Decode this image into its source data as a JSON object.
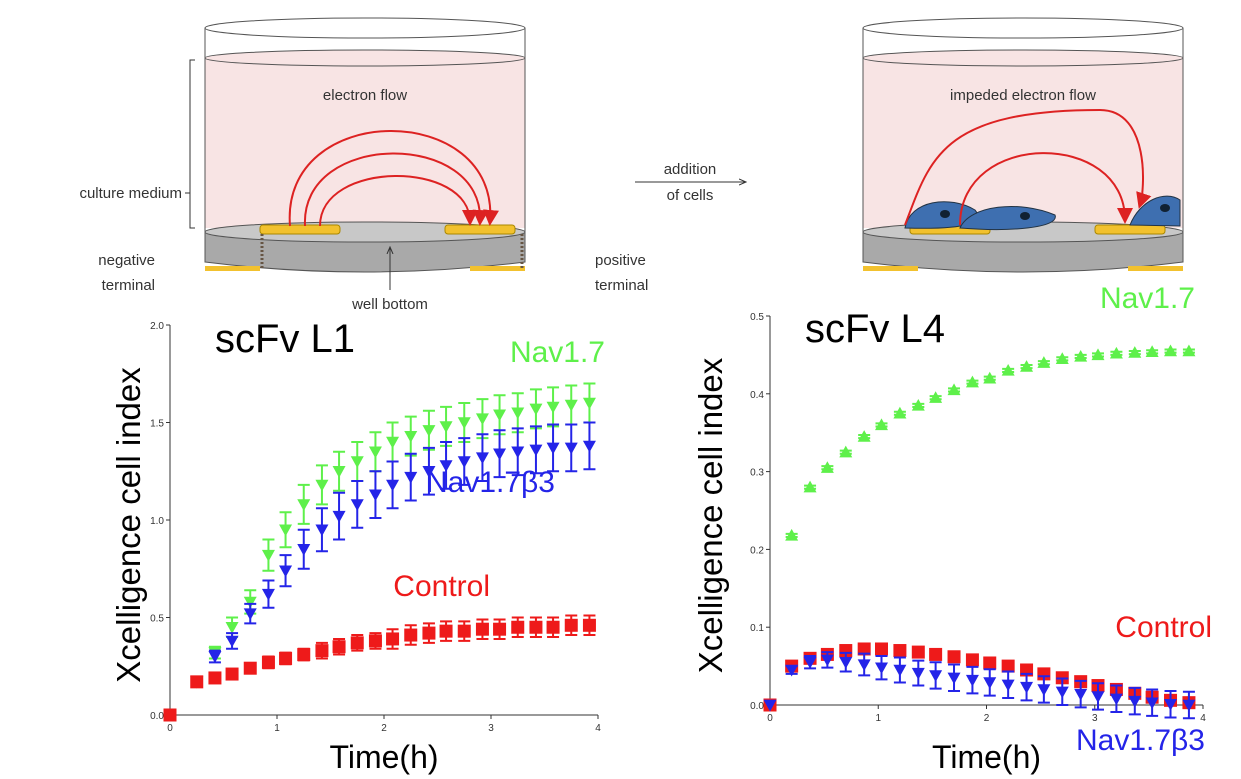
{
  "diagram": {
    "culture_medium": "culture medium",
    "electron_flow": "electron flow",
    "negative_terminal": [
      "negative",
      "terminal"
    ],
    "well_bottom": "well bottom",
    "positive_terminal": [
      "positive",
      "terminal"
    ],
    "addition": [
      "addition",
      "of cells"
    ],
    "impeded_flow": "impeded electron flow"
  },
  "chart_data": [
    {
      "type": "scatter",
      "title": "scFv L1",
      "xlabel": "Time(h)",
      "ylabel": "Xcelligence cell index",
      "xlim": [
        0,
        4
      ],
      "xticks": [
        0,
        1,
        2,
        3,
        4
      ],
      "ylim": [
        0,
        2
      ],
      "yticks": [
        {
          "value": 0,
          "label": "0.0"
        },
        0.5,
        {
          "value": 1,
          "label": "1.0"
        },
        1.5,
        {
          "value": 2,
          "label": "2.0"
        }
      ],
      "x": [
        0,
        0.25,
        0.42,
        0.58,
        0.75,
        0.92,
        1.08,
        1.25,
        1.42,
        1.58,
        1.75,
        1.92,
        2.08,
        2.25,
        2.42,
        2.58,
        2.75,
        2.92,
        3.08,
        3.25,
        3.42,
        3.58,
        3.75,
        3.92
      ],
      "series": [
        {
          "name": "Nav1.7",
          "color": "#5ef04a",
          "marker": "triangle-down",
          "values": [
            0,
            0.17,
            0.32,
            0.45,
            0.58,
            0.82,
            0.95,
            1.08,
            1.18,
            1.25,
            1.3,
            1.35,
            1.4,
            1.43,
            1.46,
            1.48,
            1.5,
            1.52,
            1.54,
            1.55,
            1.57,
            1.58,
            1.59,
            1.6
          ],
          "errors": [
            0,
            0.02,
            0.03,
            0.05,
            0.06,
            0.08,
            0.09,
            0.1,
            0.1,
            0.1,
            0.1,
            0.1,
            0.1,
            0.1,
            0.1,
            0.1,
            0.1,
            0.1,
            0.1,
            0.1,
            0.1,
            0.1,
            0.1,
            0.1
          ]
        },
        {
          "name": "Nav1.7β3",
          "color": "#2424e8",
          "marker": "triangle-down",
          "values": [
            0,
            0.17,
            0.3,
            0.38,
            0.52,
            0.62,
            0.74,
            0.85,
            0.95,
            1.02,
            1.08,
            1.13,
            1.18,
            1.22,
            1.25,
            1.28,
            1.3,
            1.32,
            1.34,
            1.35,
            1.36,
            1.37,
            1.37,
            1.38
          ],
          "errors": [
            0,
            0.02,
            0.03,
            0.04,
            0.05,
            0.07,
            0.08,
            0.1,
            0.11,
            0.12,
            0.12,
            0.12,
            0.12,
            0.12,
            0.12,
            0.12,
            0.12,
            0.12,
            0.12,
            0.12,
            0.12,
            0.12,
            0.12,
            0.12
          ]
        },
        {
          "name": "Control",
          "color": "#ee1a1a",
          "marker": "square",
          "values": [
            0,
            0.17,
            0.19,
            0.21,
            0.24,
            0.27,
            0.29,
            0.31,
            0.33,
            0.35,
            0.37,
            0.38,
            0.39,
            0.41,
            0.42,
            0.43,
            0.43,
            0.44,
            0.44,
            0.45,
            0.45,
            0.45,
            0.46,
            0.46
          ],
          "errors": [
            0,
            0.01,
            0.01,
            0.02,
            0.02,
            0.03,
            0.03,
            0.03,
            0.04,
            0.04,
            0.04,
            0.04,
            0.05,
            0.05,
            0.05,
            0.05,
            0.05,
            0.05,
            0.05,
            0.05,
            0.05,
            0.05,
            0.05,
            0.05
          ]
        }
      ]
    },
    {
      "type": "scatter",
      "title": "scFv L4",
      "xlabel": "Time(h)",
      "ylabel": "Xcelligence cell index",
      "xlim": [
        0,
        4
      ],
      "xticks": [
        0,
        1,
        2,
        3,
        4
      ],
      "ylim": [
        0,
        0.5
      ],
      "yticks": [
        {
          "value": 0,
          "label": "0.0"
        },
        0.1,
        0.2,
        0.3,
        0.4,
        0.5
      ],
      "x": [
        0,
        0.2,
        0.37,
        0.53,
        0.7,
        0.87,
        1.03,
        1.2,
        1.37,
        1.53,
        1.7,
        1.87,
        2.03,
        2.2,
        2.37,
        2.53,
        2.7,
        2.87,
        3.03,
        3.2,
        3.37,
        3.53,
        3.7,
        3.87
      ],
      "series": [
        {
          "name": "Nav1.7",
          "color": "#5ef04a",
          "marker": "triangle-up",
          "values": [
            0,
            0.218,
            0.28,
            0.305,
            0.325,
            0.345,
            0.36,
            0.375,
            0.385,
            0.395,
            0.405,
            0.415,
            0.42,
            0.43,
            0.435,
            0.44,
            0.445,
            0.448,
            0.45,
            0.452,
            0.453,
            0.454,
            0.455,
            0.455
          ],
          "errors": [
            0,
            0.002,
            0.002,
            0.002,
            0.002,
            0.002,
            0.002,
            0.002,
            0.002,
            0.002,
            0.002,
            0.002,
            0.002,
            0.002,
            0.002,
            0.002,
            0.002,
            0.002,
            0.002,
            0.002,
            0.002,
            0.002,
            0.002,
            0.002
          ]
        },
        {
          "name": "Control",
          "color": "#ee1a1a",
          "marker": "square",
          "values": [
            0,
            0.05,
            0.06,
            0.065,
            0.07,
            0.072,
            0.072,
            0.07,
            0.068,
            0.065,
            0.062,
            0.058,
            0.054,
            0.05,
            0.045,
            0.04,
            0.035,
            0.03,
            0.025,
            0.02,
            0.015,
            0.01,
            0.006,
            0.003
          ],
          "errors": [
            0,
            0.004,
            0.004,
            0.004,
            0.005,
            0.005,
            0.005,
            0.005,
            0.005,
            0.005,
            0.005,
            0.005,
            0.005,
            0.005,
            0.005,
            0.005,
            0.005,
            0.005,
            0.005,
            0.005,
            0.005,
            0.005,
            0.005,
            0.005
          ]
        },
        {
          "name": "Nav1.7β3",
          "color": "#2424e8",
          "marker": "triangle-down",
          "values": [
            0,
            0.045,
            0.055,
            0.058,
            0.055,
            0.052,
            0.048,
            0.045,
            0.041,
            0.038,
            0.035,
            0.032,
            0.029,
            0.026,
            0.023,
            0.02,
            0.017,
            0.014,
            0.011,
            0.008,
            0.005,
            0.003,
            0.001,
            0
          ],
          "errors": [
            0,
            0.005,
            0.008,
            0.01,
            0.012,
            0.014,
            0.015,
            0.016,
            0.016,
            0.017,
            0.017,
            0.017,
            0.017,
            0.017,
            0.017,
            0.017,
            0.017,
            0.017,
            0.017,
            0.017,
            0.017,
            0.017,
            0.017,
            0.017
          ]
        }
      ]
    }
  ]
}
